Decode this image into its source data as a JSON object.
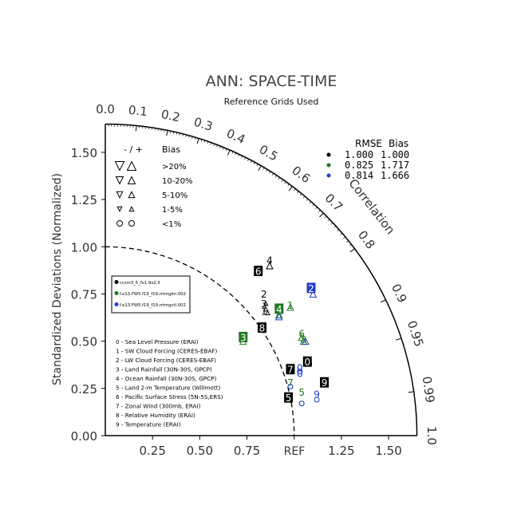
{
  "chart_data": {
    "type": "scatter",
    "title": "ANN: SPACE-TIME",
    "subtitle": "Reference Grids Used",
    "ylabel": "Standardized Deviations (Normalized)",
    "arc_label": "Correlation",
    "ref_label": "REF",
    "y_ticks": [
      "0.00",
      "0.25",
      "0.50",
      "0.75",
      "1.00",
      "1.25",
      "1.50"
    ],
    "x_ticks": [
      "0.25",
      "0.50",
      "0.75",
      "1.25",
      "1.50"
    ],
    "corr_ticks": [
      "0.0",
      "0.1",
      "0.2",
      "0.3",
      "0.4",
      "0.5",
      "0.6",
      "0.7",
      "0.8",
      "0.9",
      "0.95",
      "0.99",
      "1.0"
    ],
    "stats_header": {
      "rmse": "RMSE",
      "bias": "Bias"
    },
    "stats": [
      {
        "rmse": "1.000",
        "bias": "1.000",
        "color": "#000000"
      },
      {
        "rmse": "0.825",
        "bias": "1.717",
        "color": "#1f7a1f"
      },
      {
        "rmse": "0.814",
        "bias": "1.666",
        "color": "#1f3fd0"
      }
    ],
    "bias_legend": {
      "header_signs": "- / +",
      "header": "Bias",
      "rows": [
        ">20%",
        "10-20%",
        "5-10%",
        "1-5%",
        "<1%"
      ]
    },
    "cases": [
      {
        "name": "ccsm3_5_fv1.9x2.5",
        "color": "#000000"
      },
      {
        "name": "f.e13.FW5.f19_f19.rrtmglm.002",
        "color": "#1f7a1f"
      },
      {
        "name": "f.e13.FW5.f19_f19.rrtmgctl.002",
        "color": "#1f3fd0"
      }
    ],
    "variables": [
      "0 - Sea Level Pressure (ERAI)",
      "1 - SW Cloud Forcing (CERES-EBAF)",
      "2 - LW Cloud Forcing (CERES-EBAF)",
      "3 - Land Rainfall (30N-30S, GPCP)",
      "4 - Ocean Rainfall (30N-30S, GPCP)",
      "5 - Land 2-m Temperature (Willmott)",
      "6 - Pacific Surface Stress (5N-5S,ERS)",
      "7 - Zonal Wind (300mb, ERAI)",
      "8 - Relative Humidity (ERAI)",
      "9 - Temperature (ERAI)"
    ],
    "series": [
      {
        "name": "ccsm3_5_fv1.9x2.5",
        "color": "#000000",
        "points": [
          {
            "id": "0",
            "x": 1.08,
            "y": 0.38,
            "marker": "circle"
          },
          {
            "id": "1",
            "x": 0.86,
            "y": 0.65,
            "marker": "tri-up-small"
          },
          {
            "id": "2",
            "x": 0.85,
            "y": 0.7,
            "marker": "tri-up-small"
          },
          {
            "id": "3",
            "x": 0.85,
            "y": 0.67,
            "marker": "tri-up-small"
          },
          {
            "id": "4",
            "x": 0.87,
            "y": 0.9,
            "marker": "tri-up"
          },
          {
            "id": "5",
            "x": 0.97,
            "y": 0.19,
            "marker": "circle"
          },
          {
            "id": "6",
            "x": 0.81,
            "y": 0.86,
            "marker": "tri-up-small"
          },
          {
            "id": "7",
            "x": 0.98,
            "y": 0.34,
            "marker": "circle"
          },
          {
            "id": "8",
            "x": 0.83,
            "y": 0.56,
            "marker": "tri-up-small"
          },
          {
            "id": "9",
            "x": 1.16,
            "y": 0.27,
            "marker": "circle"
          }
        ]
      },
      {
        "name": "f.e13.FW5.f19_f19.rrtmglm.002",
        "color": "#1f7a1f",
        "points": [
          {
            "id": "1",
            "x": 0.98,
            "y": 0.68,
            "marker": "tri-up"
          },
          {
            "id": "3",
            "x": 0.73,
            "y": 0.5,
            "marker": "tri-up"
          },
          {
            "id": "4",
            "x": 0.92,
            "y": 0.64,
            "marker": "tri-up"
          },
          {
            "id": "5",
            "x": 1.04,
            "y": 0.17,
            "marker": "circle"
          },
          {
            "id": "6",
            "x": 1.04,
            "y": 0.52,
            "marker": "tri-up"
          },
          {
            "id": "7",
            "x": 0.98,
            "y": 0.26,
            "marker": "circle"
          },
          {
            "id": "8",
            "x": 1.05,
            "y": 0.5,
            "marker": "tri-up"
          }
        ]
      },
      {
        "name": "f.e13.FW5.f19_f19.rrtmgctl.002",
        "color": "#1f3fd0",
        "points": [
          {
            "id": "0",
            "x": 1.03,
            "y": 0.34,
            "marker": "circle"
          },
          {
            "id": "1",
            "x": 0.92,
            "y": 0.63,
            "marker": "tri-up"
          },
          {
            "id": "2",
            "x": 1.1,
            "y": 0.75,
            "marker": "tri-up"
          },
          {
            "id": "5",
            "x": 1.04,
            "y": 0.17,
            "marker": "circle"
          },
          {
            "id": "6",
            "x": 1.06,
            "y": 0.5,
            "marker": "tri-up"
          },
          {
            "id": "7",
            "x": 0.98,
            "y": 0.26,
            "marker": "circle"
          },
          {
            "id": "9",
            "x": 1.12,
            "y": 0.19,
            "marker": "circle"
          }
        ]
      }
    ],
    "numbered_boxes": [
      {
        "id": "0",
        "x": 1.07,
        "y": 0.39,
        "style": "box",
        "color": "#000000"
      },
      {
        "id": "1",
        "x": 0.84,
        "y": 0.66,
        "style": "text",
        "color": "#000000"
      },
      {
        "id": "1",
        "x": 0.98,
        "y": 0.69,
        "style": "text",
        "color": "#1f7a1f"
      },
      {
        "id": "2",
        "x": 0.84,
        "y": 0.75,
        "style": "text",
        "color": "#000000"
      },
      {
        "id": "2",
        "x": 1.09,
        "y": 0.78,
        "style": "box",
        "color": "#1f3fd0"
      },
      {
        "id": "3",
        "x": 0.84,
        "y": 0.7,
        "style": "text",
        "color": "#000000"
      },
      {
        "id": "3",
        "x": 0.73,
        "y": 0.52,
        "style": "box",
        "color": "#1f7a1f"
      },
      {
        "id": "4",
        "x": 0.87,
        "y": 0.93,
        "style": "text",
        "color": "#000000"
      },
      {
        "id": "4",
        "x": 0.92,
        "y": 0.67,
        "style": "box",
        "color": "#1f7a1f"
      },
      {
        "id": "5",
        "x": 0.97,
        "y": 0.2,
        "style": "box",
        "color": "#000000"
      },
      {
        "id": "5",
        "x": 1.04,
        "y": 0.23,
        "style": "text",
        "color": "#1f7a1f"
      },
      {
        "id": "6",
        "x": 0.81,
        "y": 0.87,
        "style": "box",
        "color": "#000000"
      },
      {
        "id": "6",
        "x": 1.04,
        "y": 0.54,
        "style": "text",
        "color": "#1f7a1f"
      },
      {
        "id": "7",
        "x": 0.98,
        "y": 0.35,
        "style": "box",
        "color": "#000000"
      },
      {
        "id": "7",
        "x": 0.98,
        "y": 0.28,
        "style": "text",
        "color": "#1f7a1f"
      },
      {
        "id": "8",
        "x": 0.83,
        "y": 0.57,
        "style": "box",
        "color": "#000000"
      },
      {
        "id": "8",
        "x": 1.05,
        "y": 0.51,
        "style": "text",
        "color": "#1f7a1f"
      },
      {
        "id": "9",
        "x": 1.16,
        "y": 0.28,
        "style": "box",
        "color": "#000000"
      },
      {
        "id": "0",
        "x": 1.03,
        "y": 0.36,
        "style": "text",
        "color": "#1f3fd0"
      },
      {
        "id": "0",
        "x": 1.03,
        "y": 0.33,
        "style": "text",
        "color": "#1f3fd0"
      },
      {
        "id": "9",
        "x": 1.12,
        "y": 0.22,
        "style": "text",
        "color": "#1f3fd0"
      }
    ]
  }
}
